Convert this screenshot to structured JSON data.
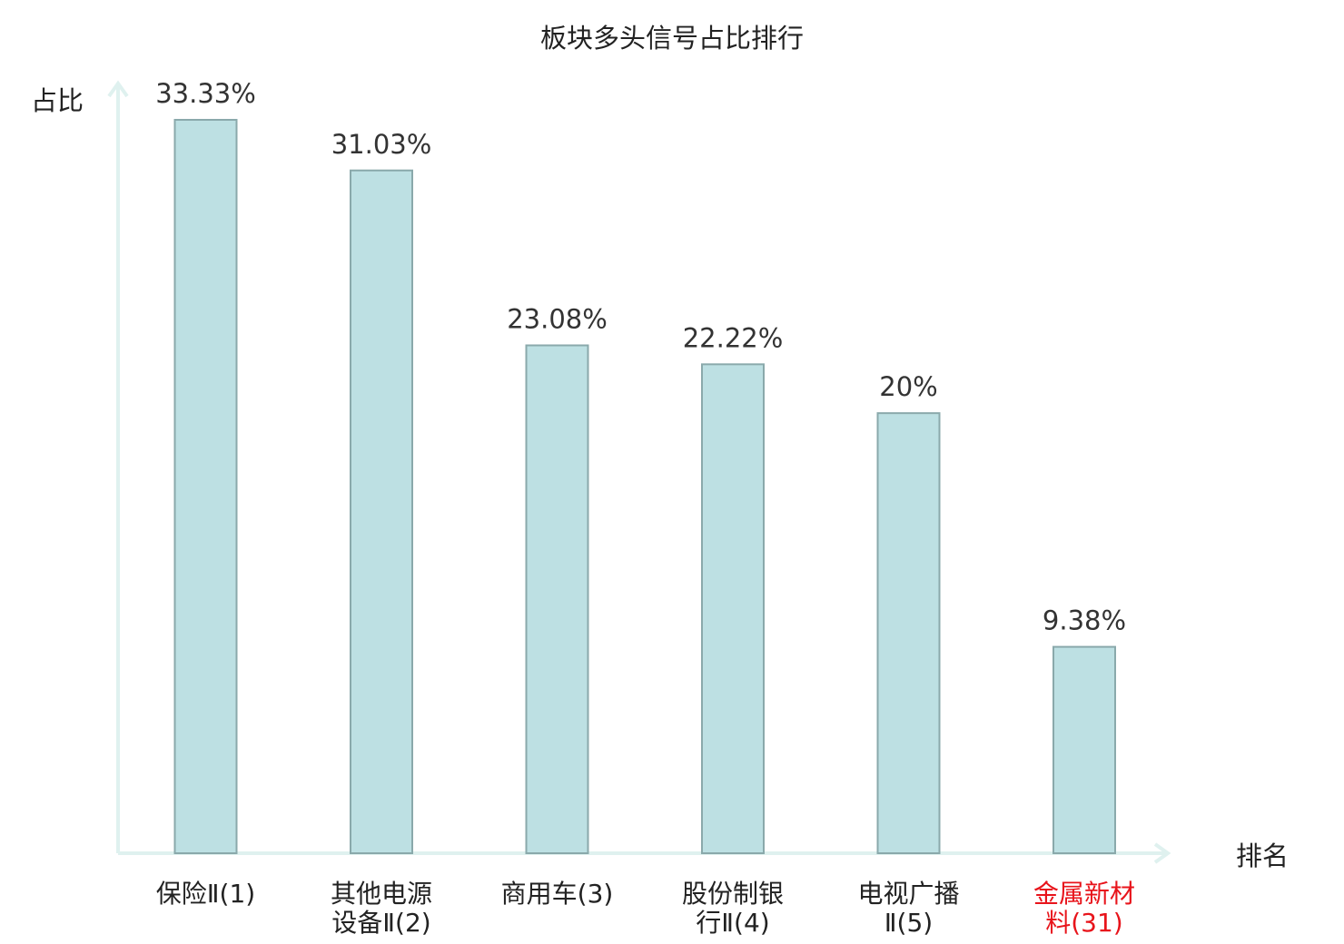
{
  "chart_data": {
    "type": "bar",
    "title": "板块多头信号占比排行",
    "ylabel": "占比",
    "xlabel": "排名",
    "categories": [
      [
        "保险Ⅱ(1)"
      ],
      [
        "其他电源",
        "设备Ⅱ(2)"
      ],
      [
        "商用车(3)"
      ],
      [
        "股份制银",
        "行Ⅱ(4)"
      ],
      [
        "电视广播",
        "Ⅱ(5)"
      ],
      [
        "金属新材",
        "料(31)"
      ]
    ],
    "values": [
      33.33,
      31.03,
      23.08,
      22.22,
      20,
      9.38
    ],
    "value_labels": [
      "33.33%",
      "31.03%",
      "23.08%",
      "22.22%",
      "20%",
      "9.38%"
    ],
    "highlight_index": 5,
    "ylim": [
      0,
      35
    ],
    "grid": false,
    "colors": {
      "bar_fill": "#bde0e3",
      "bar_stroke": "#8aa9ab",
      "axis": "#dff1ef",
      "text": "#222222",
      "value_text": "#333333",
      "highlight": "#e8141b"
    }
  }
}
